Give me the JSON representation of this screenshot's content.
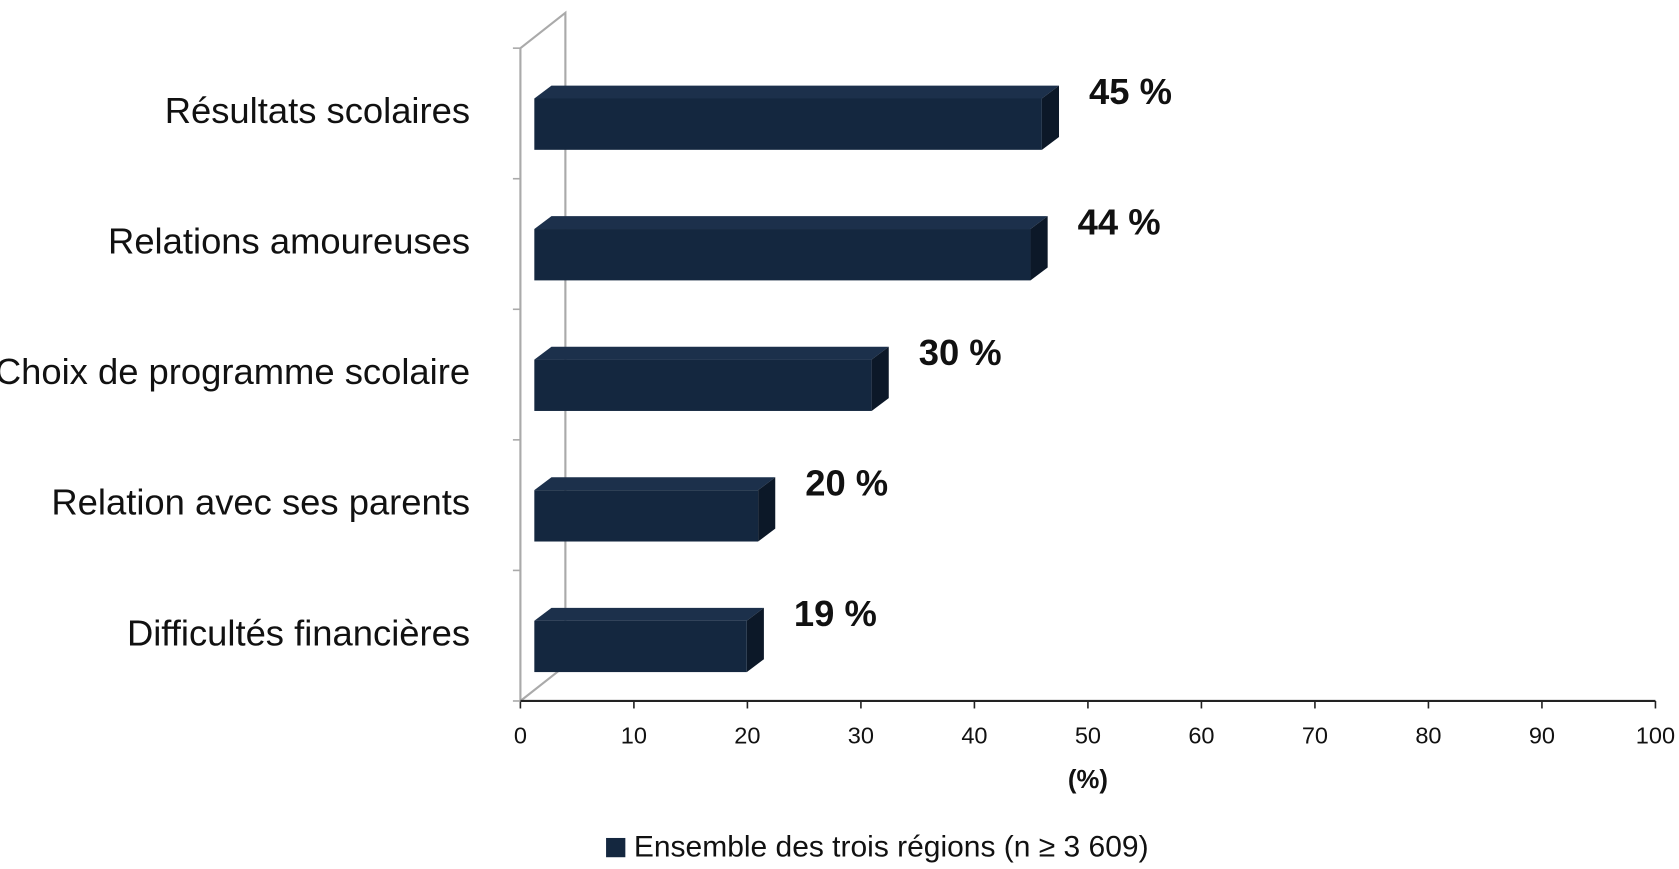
{
  "chart_data": {
    "type": "bar",
    "orientation": "horizontal",
    "categories": [
      "Résultats scolaires",
      "Relations amoureuses",
      "Choix de programme scolaire",
      "Relation avec ses parents",
      "Difficultés financières"
    ],
    "series": [
      {
        "name": "Ensemble des trois régions (n ≥ 3 609)",
        "color": "#14273f",
        "values": [
          45,
          44,
          30,
          20,
          19
        ],
        "value_labels": [
          "45 %",
          "44 %",
          "30 %",
          "20 %",
          "19 %"
        ]
      }
    ],
    "xlabel": "(%)",
    "xlim": [
      0,
      100
    ],
    "xticks": [
      0,
      10,
      20,
      30,
      40,
      50,
      60,
      70,
      80,
      90,
      100
    ],
    "legend": "bottom"
  }
}
